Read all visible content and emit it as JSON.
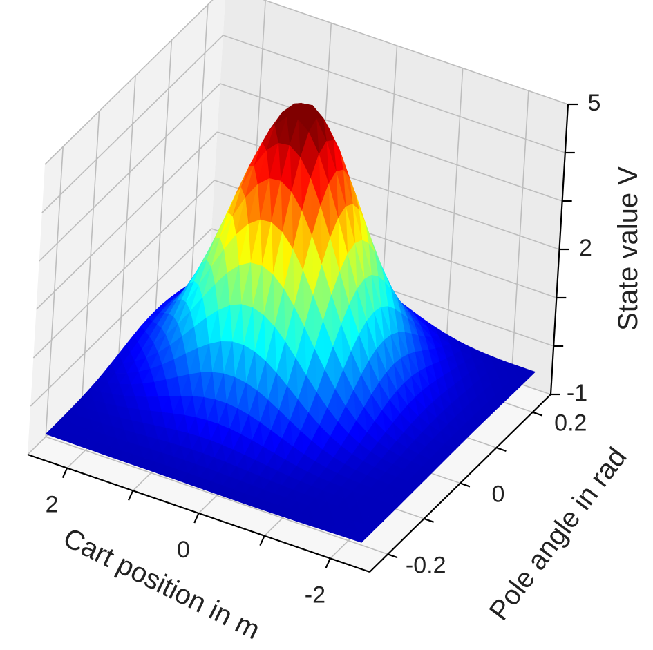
{
  "chart_data": {
    "type": "surface3d",
    "xlabel": "Cart position in m",
    "ylabel": "Pole angle in rad",
    "zlabel": "State value V",
    "x_ticks": [
      {
        "value": 2,
        "label": "2"
      },
      {
        "value": 0,
        "label": "0"
      },
      {
        "value": -2,
        "label": "-2"
      }
    ],
    "y_ticks": [
      {
        "value": -0.2,
        "label": "-0.2"
      },
      {
        "value": 0,
        "label": "0"
      },
      {
        "value": 0.2,
        "label": "0.2"
      }
    ],
    "z_ticks": [
      {
        "value": -1,
        "label": "-1"
      },
      {
        "value": 0,
        "label": ""
      },
      {
        "value": 1,
        "label": ""
      },
      {
        "value": 2,
        "label": "2"
      },
      {
        "value": 3,
        "label": ""
      },
      {
        "value": 4,
        "label": ""
      },
      {
        "value": 5,
        "label": "5"
      }
    ],
    "xlim": [
      -2.6,
      2.6
    ],
    "ylim": [
      -0.25,
      0.25
    ],
    "zlim": [
      -1,
      5
    ],
    "grid": true,
    "colormap": "jet",
    "surface": {
      "peak_value": 5.0,
      "peak_at": {
        "x": 0.4,
        "y": 0.06
      },
      "floor_value": -0.6,
      "width_x_m": 0.85,
      "width_y_rad": 0.09
    },
    "colors": {
      "pane": "#f2f2f2",
      "grid": "#bdbdbd",
      "axis": "#000000",
      "text": "#222222"
    }
  }
}
